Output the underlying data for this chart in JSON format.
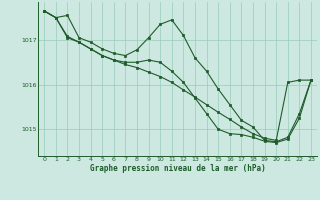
{
  "title": "Graphe pression niveau de la mer (hPa)",
  "bg_color": "#cce8e0",
  "grid_color": "#99ccbb",
  "line_color": "#1e5c2a",
  "xlim": [
    -0.5,
    23.5
  ],
  "ylim": [
    1014.4,
    1017.85
  ],
  "yticks": [
    1015,
    1016,
    1017
  ],
  "xticks": [
    0,
    1,
    2,
    3,
    4,
    5,
    6,
    7,
    8,
    9,
    10,
    11,
    12,
    13,
    14,
    15,
    16,
    17,
    18,
    19,
    20,
    21,
    22,
    23
  ],
  "line1_x": [
    0,
    1,
    2,
    3,
    4,
    5,
    6,
    7,
    8,
    9,
    10,
    11,
    12,
    13,
    14,
    15,
    16,
    17,
    18,
    19,
    20,
    21,
    22,
    23
  ],
  "line1_y": [
    1017.65,
    1017.5,
    1017.55,
    1017.05,
    1016.95,
    1016.8,
    1016.7,
    1016.65,
    1016.78,
    1017.05,
    1017.35,
    1017.45,
    1017.1,
    1016.6,
    1016.3,
    1015.9,
    1015.55,
    1015.2,
    1015.05,
    1014.75,
    1014.72,
    1014.82,
    1015.35,
    1016.1
  ],
  "line2_x": [
    0,
    1,
    2,
    3,
    4,
    5,
    6,
    7,
    8,
    9,
    10,
    11,
    12,
    13,
    14,
    15,
    16,
    17,
    18,
    19,
    20,
    21,
    22,
    23
  ],
  "line2_y": [
    1017.65,
    1017.5,
    1017.05,
    1016.95,
    1016.8,
    1016.65,
    1016.55,
    1016.5,
    1016.5,
    1016.55,
    1016.5,
    1016.3,
    1016.05,
    1015.7,
    1015.35,
    1015.0,
    1014.9,
    1014.88,
    1014.82,
    1014.73,
    1014.7,
    1014.78,
    1015.25,
    1016.1
  ],
  "line3_x": [
    0,
    1,
    2,
    3,
    4,
    5,
    6,
    7,
    8,
    9,
    10,
    11,
    12,
    13,
    14,
    15,
    16,
    17,
    18,
    19,
    20,
    21,
    22,
    23
  ],
  "line3_y": [
    1017.65,
    1017.5,
    1017.08,
    1016.95,
    1016.8,
    1016.65,
    1016.55,
    1016.45,
    1016.38,
    1016.28,
    1016.18,
    1016.05,
    1015.88,
    1015.72,
    1015.55,
    1015.38,
    1015.22,
    1015.05,
    1014.9,
    1014.8,
    1014.75,
    1016.05,
    1016.1,
    1016.1
  ]
}
